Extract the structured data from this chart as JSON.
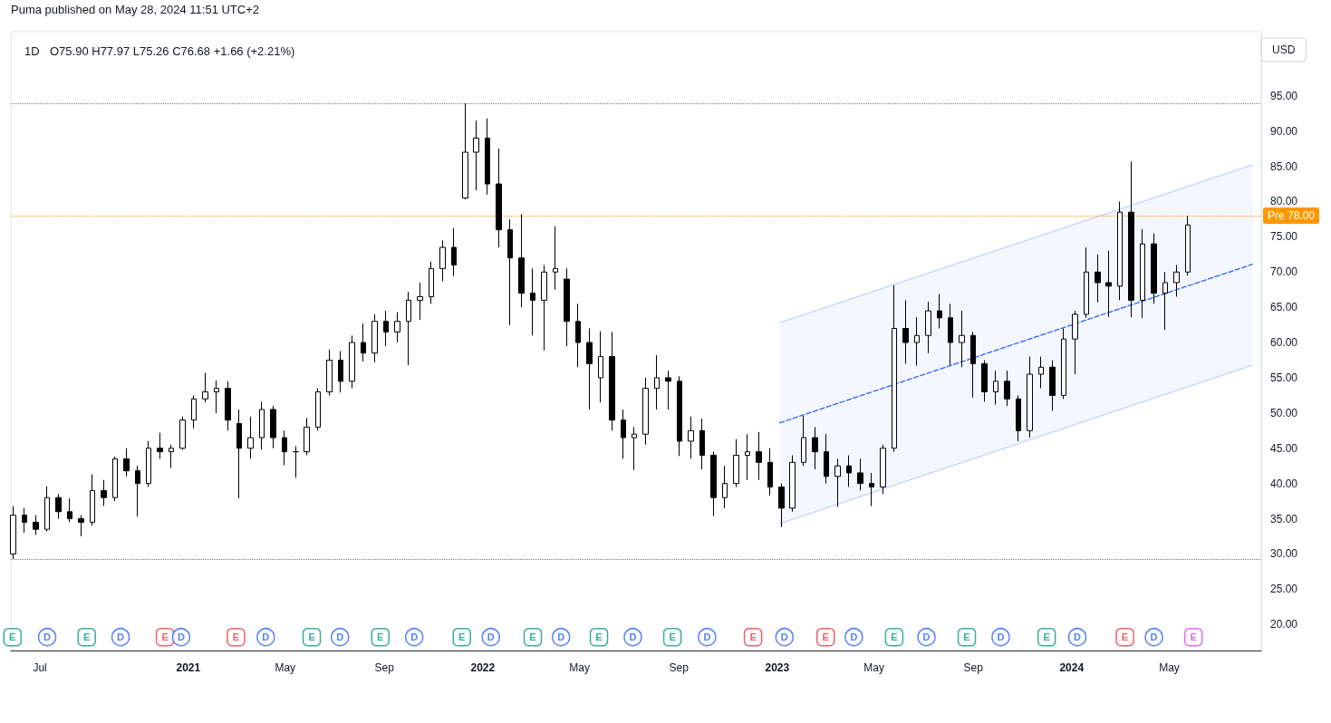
{
  "chart_data": {
    "type": "candlestick",
    "title": "1D",
    "subtitle": "O75.90 H77.97 L75.26 C76.68 +1.66 (+2.21%)",
    "ylabel": "USD",
    "annotations": [
      "Puma published on May 28, 2024 11:51 UTC+2"
    ],
    "color": "#000000",
    "x": [
      "2020-05-29",
      "2020-06-12",
      "2020-06-26",
      "2020-07-10",
      "2020-07-24",
      "2020-08-07",
      "2020-08-21",
      "2020-09-04",
      "2020-09-18",
      "2020-10-02",
      "2020-10-16",
      "2020-10-30",
      "2020-11-13",
      "2020-11-27",
      "2020-12-11",
      "2020-12-25",
      "2021-01-08",
      "2021-01-22",
      "2021-02-05",
      "2021-02-19",
      "2021-03-05",
      "2021-03-19",
      "2021-04-02",
      "2021-04-16",
      "2021-04-30",
      "2021-05-14",
      "2021-05-28",
      "2021-06-11",
      "2021-06-25",
      "2021-07-09",
      "2021-07-23",
      "2021-08-06",
      "2021-08-20",
      "2021-09-03",
      "2021-09-17",
      "2021-10-01",
      "2021-10-15",
      "2021-10-29",
      "2021-11-12",
      "2021-11-26",
      "2021-12-10",
      "2021-12-24",
      "2022-01-07",
      "2022-01-21",
      "2022-02-04",
      "2022-02-18",
      "2022-03-04",
      "2022-03-18",
      "2022-04-01",
      "2022-04-15",
      "2022-04-29",
      "2022-05-13",
      "2022-05-27",
      "2022-06-10",
      "2022-06-24",
      "2022-07-08",
      "2022-07-22",
      "2022-08-05",
      "2022-08-19",
      "2022-09-02",
      "2022-09-16",
      "2022-09-30",
      "2022-10-14",
      "2022-10-28",
      "2022-11-11",
      "2022-11-25",
      "2022-12-09",
      "2022-12-23",
      "2023-01-06",
      "2023-01-20",
      "2023-02-03",
      "2023-02-17",
      "2023-03-03",
      "2023-03-17",
      "2023-03-31",
      "2023-04-14",
      "2023-04-28",
      "2023-05-12",
      "2023-05-26",
      "2023-06-09",
      "2023-06-23",
      "2023-07-07",
      "2023-07-21",
      "2023-08-04",
      "2023-08-18",
      "2023-09-01",
      "2023-09-15",
      "2023-09-29",
      "2023-10-13",
      "2023-10-27",
      "2023-11-10",
      "2023-11-24",
      "2023-12-08",
      "2023-12-22",
      "2024-01-05",
      "2024-01-19",
      "2024-02-02",
      "2024-02-16",
      "2024-03-01",
      "2024-03-15",
      "2024-03-29",
      "2024-04-12",
      "2024-04-26",
      "2024-05-10",
      "2024-05-24"
    ],
    "ohlc": [
      [
        30.0,
        36.8,
        29.3,
        35.5
      ],
      [
        35.5,
        36.5,
        33.0,
        34.5
      ],
      [
        34.5,
        35.5,
        32.7,
        33.5
      ],
      [
        33.5,
        39.6,
        33.2,
        38.0
      ],
      [
        38.0,
        38.5,
        35.0,
        36.0
      ],
      [
        36.0,
        37.9,
        34.5,
        35.0
      ],
      [
        35.0,
        35.5,
        32.5,
        34.5
      ],
      [
        34.5,
        41.3,
        34.0,
        39.0
      ],
      [
        39.0,
        40.5,
        36.8,
        38.0
      ],
      [
        38.0,
        43.8,
        37.5,
        43.5
      ],
      [
        43.5,
        45.0,
        41.0,
        41.8
      ],
      [
        41.8,
        42.5,
        35.3,
        40.0
      ],
      [
        40.0,
        46.0,
        39.5,
        45.0
      ],
      [
        45.0,
        47.2,
        43.5,
        44.5
      ],
      [
        44.5,
        45.5,
        42.2,
        45.0
      ],
      [
        45.0,
        49.5,
        44.8,
        49.0
      ],
      [
        49.0,
        52.5,
        47.8,
        52.0
      ],
      [
        52.0,
        55.7,
        51.5,
        53.0
      ],
      [
        53.0,
        54.6,
        50.0,
        53.5
      ],
      [
        53.5,
        54.5,
        47.5,
        49.0
      ],
      [
        48.5,
        50.5,
        37.9,
        45.0
      ],
      [
        45.0,
        49.5,
        43.5,
        46.5
      ],
      [
        46.5,
        51.6,
        44.8,
        50.5
      ],
      [
        50.5,
        51.0,
        45.0,
        46.5
      ],
      [
        46.5,
        47.5,
        42.6,
        44.5
      ],
      [
        44.5,
        45.3,
        40.8,
        44.5
      ],
      [
        44.5,
        49.3,
        44.0,
        48.0
      ],
      [
        48.0,
        53.5,
        47.5,
        53.0
      ],
      [
        53.0,
        59.0,
        52.5,
        57.5
      ],
      [
        57.5,
        58.8,
        52.9,
        54.5
      ],
      [
        54.5,
        61.0,
        53.5,
        60.0
      ],
      [
        60.0,
        62.7,
        57.3,
        58.5
      ],
      [
        58.5,
        64.0,
        57.2,
        63.0
      ],
      [
        63.0,
        64.5,
        59.5,
        61.5
      ],
      [
        61.5,
        64.3,
        60.0,
        63.0
      ],
      [
        63.0,
        67.2,
        56.8,
        66.0
      ],
      [
        66.0,
        68.5,
        63.2,
        66.5
      ],
      [
        66.5,
        71.5,
        65.5,
        70.5
      ],
      [
        70.5,
        74.5,
        68.7,
        73.5
      ],
      [
        73.5,
        76.2,
        69.4,
        71.0
      ],
      [
        80.5,
        93.9,
        80.3,
        87.0
      ],
      [
        87.0,
        91.5,
        81.6,
        89.0
      ],
      [
        89.0,
        91.8,
        81.0,
        82.5
      ],
      [
        82.5,
        87.5,
        73.5,
        76.0
      ],
      [
        76.0,
        77.5,
        62.5,
        72.0
      ],
      [
        72.0,
        78.2,
        65.0,
        67.0
      ],
      [
        67.0,
        70.5,
        61.0,
        66.0
      ],
      [
        66.0,
        71.0,
        58.9,
        70.0
      ],
      [
        70.0,
        76.5,
        67.5,
        70.5
      ],
      [
        69.0,
        70.5,
        59.5,
        63.0
      ],
      [
        63.0,
        65.5,
        56.5,
        60.0
      ],
      [
        60.0,
        62.0,
        50.5,
        57.0
      ],
      [
        55.0,
        61.6,
        51.5,
        58.0
      ],
      [
        58.0,
        61.5,
        47.5,
        49.0
      ],
      [
        49.0,
        50.5,
        43.5,
        46.5
      ],
      [
        46.5,
        48.0,
        41.9,
        47.0
      ],
      [
        47.0,
        55.0,
        45.5,
        53.5
      ],
      [
        53.5,
        58.2,
        50.5,
        55.0
      ],
      [
        55.0,
        56.0,
        50.5,
        54.5
      ],
      [
        54.5,
        55.2,
        43.9,
        46.0
      ],
      [
        46.0,
        49.5,
        43.5,
        47.5
      ],
      [
        47.5,
        49.2,
        42.0,
        44.0
      ],
      [
        44.0,
        44.5,
        35.4,
        38.0
      ],
      [
        38.0,
        42.5,
        36.5,
        40.0
      ],
      [
        40.0,
        46.3,
        39.5,
        44.0
      ],
      [
        44.0,
        47.0,
        40.5,
        44.5
      ],
      [
        44.5,
        47.3,
        40.5,
        43.0
      ],
      [
        43.0,
        45.0,
        38.3,
        39.5
      ],
      [
        39.5,
        40.0,
        33.8,
        36.5
      ],
      [
        36.5,
        44.0,
        36.0,
        43.0
      ],
      [
        43.0,
        49.6,
        42.5,
        46.5
      ],
      [
        46.5,
        48.0,
        42.0,
        44.5
      ],
      [
        44.5,
        47.0,
        40.0,
        41.0
      ],
      [
        41.0,
        43.5,
        36.7,
        42.5
      ],
      [
        42.5,
        44.0,
        39.5,
        41.5
      ],
      [
        41.5,
        43.5,
        39.0,
        40.0
      ],
      [
        40.0,
        41.5,
        36.8,
        39.5
      ],
      [
        39.5,
        45.5,
        38.5,
        45.0
      ],
      [
        45.0,
        68.1,
        44.5,
        62.0
      ],
      [
        62.0,
        66.0,
        57.0,
        60.0
      ],
      [
        60.0,
        63.6,
        56.7,
        61.0
      ],
      [
        61.0,
        65.8,
        58.5,
        64.5
      ],
      [
        64.5,
        66.9,
        62.0,
        63.5
      ],
      [
        63.5,
        65.5,
        56.8,
        60.0
      ],
      [
        60.0,
        64.5,
        56.5,
        61.0
      ],
      [
        61.0,
        61.5,
        52.2,
        57.0
      ],
      [
        57.0,
        57.5,
        51.6,
        53.0
      ],
      [
        53.0,
        56.0,
        51.2,
        54.5
      ],
      [
        54.5,
        56.0,
        51.0,
        52.0
      ],
      [
        52.0,
        52.5,
        46.0,
        47.5
      ],
      [
        47.5,
        58.0,
        46.5,
        55.5
      ],
      [
        55.5,
        58.0,
        53.5,
        56.5
      ],
      [
        56.5,
        57.5,
        50.3,
        52.5
      ],
      [
        52.5,
        62.0,
        52.0,
        60.5
      ],
      [
        60.5,
        64.5,
        55.5,
        64.0
      ],
      [
        64.0,
        73.5,
        63.5,
        70.0
      ],
      [
        70.0,
        72.5,
        65.7,
        68.5
      ],
      [
        68.5,
        73.0,
        63.6,
        68.0
      ],
      [
        68.0,
        80.0,
        66.0,
        78.5
      ],
      [
        78.5,
        85.7,
        63.6,
        66.0
      ],
      [
        66.0,
        76.1,
        63.5,
        74.0
      ],
      [
        74.0,
        75.5,
        65.5,
        67.0
      ],
      [
        67.0,
        70.0,
        61.8,
        68.5
      ],
      [
        68.5,
        71.0,
        66.5,
        70.0
      ],
      [
        70.0,
        77.97,
        69.5,
        76.68
      ]
    ],
    "series": [
      {
        "type": "line",
        "x": [
          "2023-01-04",
          "2024-08-12"
        ],
        "values": [
          62.8,
          85.2
        ],
        "color": "#b4c6fc",
        "line_style": "solid",
        "marker": "none"
      },
      {
        "type": "line",
        "x": [
          "2023-01-04",
          "2024-08-12"
        ],
        "values": [
          48.6,
          71.1
        ],
        "lower": [
          34.3,
          56.8
        ],
        "upper": [
          62.8,
          85.2
        ],
        "color": "#2962ff",
        "line_style": "dashed",
        "marker": "none"
      },
      {
        "type": "line",
        "x": [
          "2023-01-04",
          "2024-08-12"
        ],
        "values": [
          34.3,
          56.8
        ],
        "color": "#b4c6fc",
        "line_style": "solid",
        "marker": "none"
      },
      {
        "type": "scatter",
        "color": "#089981",
        "marker": "square",
        "x": [
          "2020-05-28",
          "2020-08-28",
          "2021-06-03",
          "2021-08-27",
          "2021-12-06",
          "2022-03-04",
          "2022-05-25",
          "2022-08-24",
          "2023-05-26",
          "2023-08-24",
          "2023-12-01"
        ],
        "values": [
          18.2,
          18.2,
          18.2,
          18.2,
          18.2,
          18.2,
          18.2,
          18.2,
          18.2,
          18.2,
          18.2
        ],
        "value_labels": [
          "E",
          "E",
          "E",
          "E",
          "E",
          "E",
          "E",
          "E",
          "E",
          "E",
          "E"
        ]
      },
      {
        "type": "scatter",
        "color": "#f23645",
        "marker": "square",
        "x": [
          "2020-12-03",
          "2021-03-01",
          "2022-12-02",
          "2023-03-02",
          "2024-03-07"
        ],
        "values": [
          18.2,
          18.2,
          18.2,
          18.2,
          18.2
        ],
        "value_labels": [
          "E",
          "E",
          "E",
          "E",
          "E"
        ]
      },
      {
        "type": "scatter",
        "color": "#e040fb",
        "marker": "square",
        "x": [
          "2024-05-31"
        ],
        "values": [
          18.2
        ],
        "value_labels": [
          "E"
        ]
      },
      {
        "type": "scatter",
        "color": "#2962ff",
        "marker": "circle",
        "x": [
          "2020-07-10",
          "2020-10-09",
          "2020-12-23",
          "2021-04-07",
          "2021-07-08",
          "2021-10-08",
          "2022-01-11",
          "2022-04-08",
          "2022-07-06",
          "2022-10-06",
          "2023-01-10",
          "2023-04-06",
          "2023-07-05",
          "2023-10-05",
          "2024-01-08",
          "2024-04-12"
        ],
        "values": [
          18.2,
          18.2,
          18.2,
          18.2,
          18.2,
          18.2,
          18.2,
          18.2,
          18.2,
          18.2,
          18.2,
          18.2,
          18.2,
          18.2,
          18.2,
          18.2
        ],
        "value_labels": [
          "D",
          "D",
          "D",
          "D",
          "D",
          "D",
          "D",
          "D",
          "D",
          "D",
          "D",
          "D",
          "D",
          "D",
          "D",
          "D"
        ]
      }
    ],
    "ref_lines": [
      {
        "axis": "y",
        "value": 93.9,
        "color": "#787b86",
        "line_style": "dotted"
      },
      {
        "axis": "y",
        "value": 78,
        "label": "Pre 78.00",
        "color": "#ff9800",
        "line_style": "dotted"
      },
      {
        "axis": "y",
        "value": 29.3,
        "color": "#787b86",
        "line_style": "dotted"
      }
    ],
    "xlim": [
      "2020-05-26",
      "2024-08-23"
    ],
    "xticks": [
      {
        "value": "2020-07-01",
        "label": "Jul"
      },
      {
        "value": "2021-01-01",
        "label": "2021"
      },
      {
        "value": "2021-05-01",
        "label": "May"
      },
      {
        "value": "2021-09-01",
        "label": "Sep"
      },
      {
        "value": "2022-01-01",
        "label": "2022"
      },
      {
        "value": "2022-05-01",
        "label": "May"
      },
      {
        "value": "2022-09-01",
        "label": "Sep"
      },
      {
        "value": "2023-01-01",
        "label": "2023"
      },
      {
        "value": "2023-05-01",
        "label": "May"
      },
      {
        "value": "2023-09-01",
        "label": "Sep"
      },
      {
        "value": "2024-01-01",
        "label": "2024"
      },
      {
        "value": "2024-05-01",
        "label": "May"
      }
    ],
    "ylim": [
      16.3,
      104.1
    ],
    "yticks": [
      {
        "value": 20,
        "label": "20.00"
      },
      {
        "value": 25,
        "label": "25.00"
      },
      {
        "value": 30,
        "label": "30.00"
      },
      {
        "value": 35,
        "label": "35.00"
      },
      {
        "value": 40,
        "label": "40.00"
      },
      {
        "value": 45,
        "label": "45.00"
      },
      {
        "value": 50,
        "label": "50.00"
      },
      {
        "value": 55,
        "label": "55.00"
      },
      {
        "value": 60,
        "label": "60.00"
      },
      {
        "value": 65,
        "label": "65.00"
      },
      {
        "value": 70,
        "label": "70.00"
      },
      {
        "value": 75,
        "label": "75.00"
      },
      {
        "value": 80,
        "label": "80.00"
      },
      {
        "value": 85,
        "label": "85.00"
      },
      {
        "value": 90,
        "label": "90.00"
      },
      {
        "value": 95,
        "label": "95.00"
      }
    ]
  }
}
